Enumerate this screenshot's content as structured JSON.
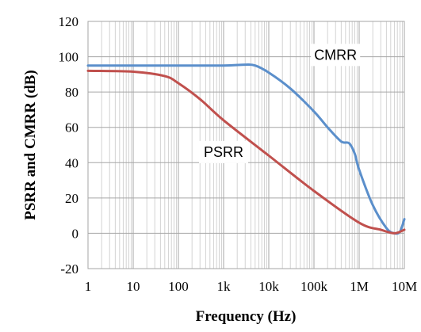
{
  "chart_data": {
    "type": "line",
    "title": "",
    "xlabel": "Frequency (Hz)",
    "ylabel": "PSRR and CMRR (dB)",
    "xscale": "log",
    "xlim": [
      1,
      10000000
    ],
    "ylim": [
      -20,
      120
    ],
    "xticks": [
      1,
      10,
      100,
      1000,
      10000,
      100000,
      1000000,
      10000000
    ],
    "xtick_labels": [
      "1",
      "10",
      "100",
      "1k",
      "10k",
      "100k",
      "1M",
      "10M"
    ],
    "yticks": [
      -20,
      0,
      20,
      40,
      60,
      80,
      100,
      120
    ],
    "ytick_labels": [
      "-20",
      "0",
      "20",
      "40",
      "60",
      "80",
      "100",
      "120"
    ],
    "grid": true,
    "legend": "none",
    "series": [
      {
        "name": "CMRR",
        "color": "#5b8fcb",
        "x": [
          1,
          10,
          100,
          1000,
          3000,
          5000,
          10000,
          30000,
          100000,
          200000,
          400000,
          600000,
          800000,
          1000000,
          2000000,
          4000000,
          6000000,
          8000000,
          10000000
        ],
        "y": [
          95,
          95,
          95,
          95,
          95.5,
          95,
          91,
          82,
          69,
          60,
          52,
          51,
          45,
          36,
          16,
          3,
          0,
          1,
          8
        ]
      },
      {
        "name": "PSRR",
        "color": "#c0504d",
        "x": [
          1,
          10,
          50,
          100,
          300,
          1000,
          10000,
          100000,
          1000000,
          3000000,
          6000000,
          10000000
        ],
        "y": [
          92,
          91.5,
          89,
          85,
          76,
          64,
          44,
          24,
          6,
          2,
          0,
          2
        ]
      }
    ],
    "annotations": [
      {
        "text": "CMRR",
        "x": 300000,
        "y": 101
      },
      {
        "text": "PSRR",
        "x": 1000,
        "y": 46
      }
    ]
  }
}
